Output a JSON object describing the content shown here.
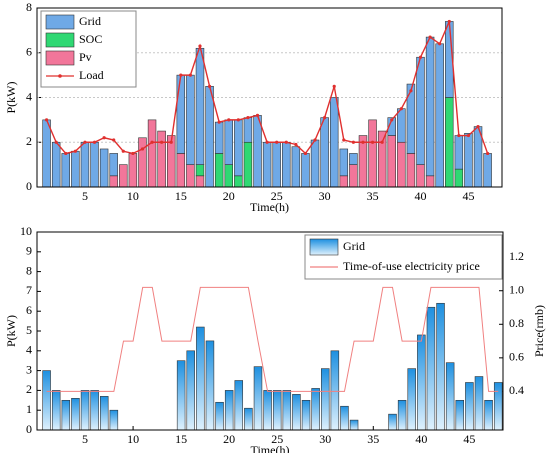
{
  "chart_data": [
    {
      "type": "stacked_bar",
      "xlabel": "Time(h)",
      "ylabel": "P(kW)",
      "x": [
        1,
        2,
        3,
        4,
        5,
        6,
        7,
        8,
        9,
        10,
        11,
        12,
        13,
        14,
        15,
        16,
        17,
        18,
        19,
        20,
        21,
        22,
        23,
        24,
        25,
        26,
        27,
        28,
        29,
        30,
        31,
        32,
        33,
        34,
        35,
        36,
        37,
        38,
        39,
        40,
        41,
        42,
        43,
        44,
        45,
        46,
        47
      ],
      "series": [
        {
          "name": "Grid",
          "color": "#6fa9e6",
          "type": "bar",
          "values": [
            3.0,
            2.0,
            1.5,
            1.6,
            2.0,
            2.0,
            1.7,
            1.0,
            0,
            0,
            0,
            0,
            0,
            0,
            3.5,
            4.0,
            5.2,
            4.5,
            1.4,
            2.0,
            2.5,
            1.1,
            3.2,
            2.0,
            2.0,
            2.0,
            1.8,
            1.5,
            2.1,
            3.1,
            4.0,
            1.2,
            0.5,
            0,
            0,
            0,
            0.8,
            1.5,
            3.1,
            4.8,
            6.2,
            6.4,
            3.4,
            1.5,
            2.4,
            2.7,
            1.5
          ]
        },
        {
          "name": "SOC",
          "color": "#2fd873",
          "type": "bar",
          "values": [
            0,
            0,
            0,
            0,
            0,
            0,
            0,
            0,
            0,
            0,
            0,
            0,
            0,
            0,
            0,
            0,
            0.5,
            0,
            1.5,
            1.0,
            0.5,
            2.0,
            0,
            0,
            0,
            0,
            0,
            0,
            0,
            0,
            0,
            0,
            0,
            0,
            0,
            0,
            0,
            0,
            0,
            0,
            0,
            0,
            4.0,
            0.8,
            0,
            0,
            0
          ]
        },
        {
          "name": "Pv",
          "color": "#f2769a",
          "type": "bar",
          "values": [
            0,
            0,
            0,
            0,
            0,
            0,
            0,
            0.5,
            1.0,
            1.5,
            2.2,
            3.0,
            2.5,
            2.3,
            1.5,
            1.0,
            0.5,
            0,
            0,
            0,
            0,
            0,
            0,
            0,
            0,
            0,
            0,
            0,
            0,
            0,
            0,
            0.5,
            1.0,
            2.3,
            3.0,
            2.5,
            2.3,
            2.0,
            1.5,
            1.0,
            0.5,
            0,
            0,
            0,
            0,
            0,
            0
          ]
        },
        {
          "name": "Load",
          "color": "#e0302f",
          "type": "line",
          "values": [
            3.0,
            2.0,
            1.5,
            1.6,
            2.0,
            2.0,
            2.2,
            2.1,
            1.6,
            1.5,
            1.7,
            2.0,
            2.0,
            2.0,
            5.0,
            5.0,
            6.3,
            4.5,
            2.9,
            3.0,
            3.0,
            3.1,
            3.2,
            2.0,
            2.0,
            2.0,
            1.9,
            1.5,
            2.1,
            3.1,
            4.5,
            2.1,
            2.0,
            2.0,
            2.0,
            2.0,
            3.0,
            3.5,
            4.3,
            5.8,
            6.7,
            6.4,
            7.4,
            2.3,
            2.3,
            2.7,
            1.5
          ]
        }
      ],
      "xlim": [
        0,
        48.5
      ],
      "xticks": [
        5,
        10,
        15,
        20,
        25,
        30,
        35,
        40,
        45
      ],
      "ylim": [
        0,
        8
      ],
      "yticks": [
        0,
        2,
        4,
        6,
        8
      ],
      "grid": true,
      "legend": "upper left"
    },
    {
      "type": "bar",
      "xlabel": "Time(h)",
      "ylabel": "P(kW)",
      "y2label": "Price(rmb)",
      "x": [
        1,
        2,
        3,
        4,
        5,
        6,
        7,
        8,
        9,
        10,
        11,
        12,
        13,
        14,
        15,
        16,
        17,
        18,
        19,
        20,
        21,
        22,
        23,
        24,
        25,
        26,
        27,
        28,
        29,
        30,
        31,
        32,
        33,
        34,
        35,
        36,
        37,
        38,
        39,
        40,
        41,
        42,
        43,
        44,
        45,
        46,
        47,
        48
      ],
      "series": [
        {
          "name": "Grid",
          "color": "#1e90e0",
          "type": "bar",
          "values": [
            3.0,
            2.0,
            1.5,
            1.6,
            2.0,
            2.0,
            1.7,
            1.0,
            0,
            0,
            0,
            0,
            0,
            0,
            3.5,
            4.0,
            5.2,
            4.5,
            1.4,
            2.0,
            2.5,
            1.1,
            3.2,
            2.0,
            2.0,
            2.0,
            1.8,
            1.5,
            2.1,
            3.1,
            4.0,
            1.2,
            0.5,
            0,
            0,
            0,
            0.8,
            1.5,
            3.1,
            4.8,
            6.2,
            6.4,
            3.4,
            1.5,
            2.4,
            2.7,
            1.5,
            2.4
          ]
        },
        {
          "name": "Time-of-use electricity price",
          "color": "#f08080",
          "type": "line",
          "axis": "y2",
          "values": [
            0.4,
            0.4,
            0.4,
            0.4,
            0.4,
            0.4,
            0.4,
            0.4,
            0.7,
            0.7,
            1.02,
            1.02,
            0.7,
            0.7,
            0.7,
            0.7,
            1.02,
            1.02,
            1.02,
            1.02,
            1.02,
            1.02,
            0.7,
            0.4,
            0.4,
            0.4,
            0.4,
            0.4,
            0.4,
            0.4,
            0.4,
            0.4,
            0.7,
            0.7,
            0.7,
            1.02,
            1.02,
            0.7,
            0.7,
            0.7,
            1.02,
            1.02,
            1.02,
            1.02,
            1.02,
            1.02,
            0.4,
            0.4
          ]
        }
      ],
      "xlim": [
        0,
        48.5
      ],
      "xticks": [
        5,
        10,
        15,
        20,
        25,
        30,
        35,
        40,
        45
      ],
      "ylim": [
        0,
        10
      ],
      "yticks": [
        0,
        1,
        2,
        3,
        4,
        5,
        6,
        7,
        8,
        9,
        10
      ],
      "y2lim": [
        0.17,
        1.35
      ],
      "y2ticks": [
        0.4,
        0.6,
        0.8,
        {
          "value": 1,
          "label": "1.0"
        },
        1.2
      ],
      "grid": false,
      "legend": "upper right"
    }
  ]
}
